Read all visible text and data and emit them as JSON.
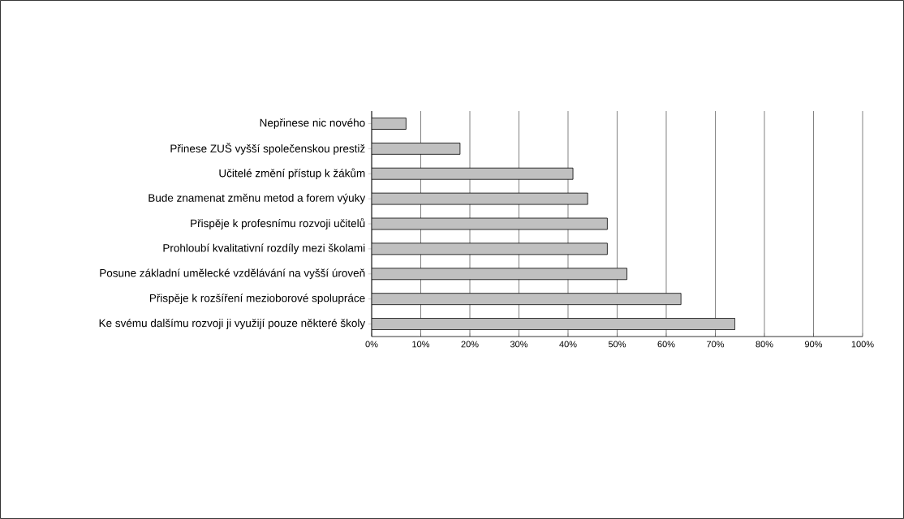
{
  "chart_data": {
    "type": "bar",
    "orientation": "horizontal",
    "categories": [
      "Nepřinese nic nového",
      "Přinese ZUŠ vyšší společenskou prestiž",
      "Učitelé změní přístup k žákům",
      "Bude znamenat změnu metod a forem výuky",
      "Přispěje k profesnímu rozvoji učitelů",
      "Prohloubí kvalitativní rozdíly mezi školami",
      "Posune základní umělecké vzdělávání na vyšší úroveň",
      "Přispěje k rozšíření mezioborové spolupráce",
      "Ke svému dalšímu rozvoji ji využijí pouze některé školy"
    ],
    "values": [
      7,
      18,
      41,
      44,
      48,
      48,
      52,
      63,
      74
    ],
    "color": "#c0c0c0",
    "xlim": [
      0,
      100
    ],
    "xticks": [
      {
        "value": 0,
        "label": "0%"
      },
      {
        "value": 10,
        "label": "10%"
      },
      {
        "value": 20,
        "label": "20%"
      },
      {
        "value": 30,
        "label": "30%"
      },
      {
        "value": 40,
        "label": "40%"
      },
      {
        "value": 50,
        "label": "50%"
      },
      {
        "value": 60,
        "label": "60%"
      },
      {
        "value": 70,
        "label": "70%"
      },
      {
        "value": 80,
        "label": "80%"
      },
      {
        "value": 90,
        "label": "90%"
      },
      {
        "value": 100,
        "label": "100%"
      }
    ],
    "grid": "x"
  }
}
